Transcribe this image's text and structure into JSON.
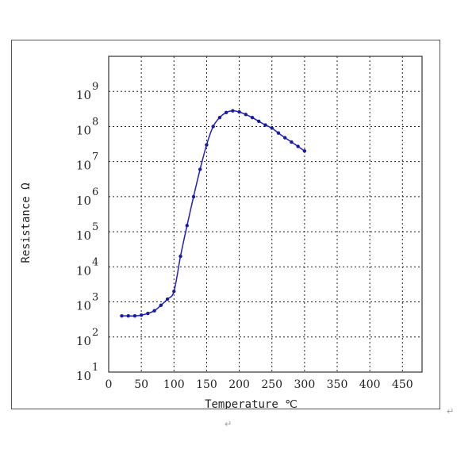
{
  "chart_data": {
    "type": "line",
    "xlabel": "Temperature  ℃",
    "ylabel": "Resistance  Ω",
    "xlim": [
      0,
      480
    ],
    "x_ticks": [
      0,
      50,
      100,
      150,
      200,
      250,
      300,
      350,
      400,
      450
    ],
    "y_scale": "log",
    "ylim": [
      10,
      10000000000
    ],
    "y_ticks": [
      {
        "base": "10",
        "exp": "1",
        "value": 10
      },
      {
        "base": "10",
        "exp": "2",
        "value": 100
      },
      {
        "base": "10",
        "exp": "3",
        "value": 1000
      },
      {
        "base": "10",
        "exp": "4",
        "value": 10000
      },
      {
        "base": "10",
        "exp": "5",
        "value": 100000
      },
      {
        "base": "10",
        "exp": "6",
        "value": 1000000
      },
      {
        "base": "10",
        "exp": "7",
        "value": 10000000
      },
      {
        "base": "10",
        "exp": "8",
        "value": 100000000
      },
      {
        "base": "10",
        "exp": "9",
        "value": 1000000000
      }
    ],
    "grid": "dotted",
    "line_color": "#2020c0",
    "marker_color": "#1a1aa0",
    "series": [
      {
        "x": [
          20,
          30,
          40,
          50,
          60,
          70,
          80,
          90,
          100,
          110,
          120,
          130,
          140,
          150,
          160,
          170,
          180,
          190,
          200,
          210,
          220,
          230,
          240,
          250,
          260,
          270,
          280,
          290,
          300
        ],
        "y": [
          400,
          400,
          400,
          420,
          470,
          560,
          800,
          1200,
          2000,
          20000,
          150000,
          1000000,
          6000000,
          30000000,
          100000000,
          180000000,
          250000000,
          280000000,
          260000000,
          220000000,
          180000000,
          140000000,
          110000000,
          90000000,
          65000000,
          48000000,
          36000000,
          27000000,
          20000000
        ]
      }
    ]
  },
  "marks": {
    "return_1": "↵",
    "return_2": "↵"
  }
}
